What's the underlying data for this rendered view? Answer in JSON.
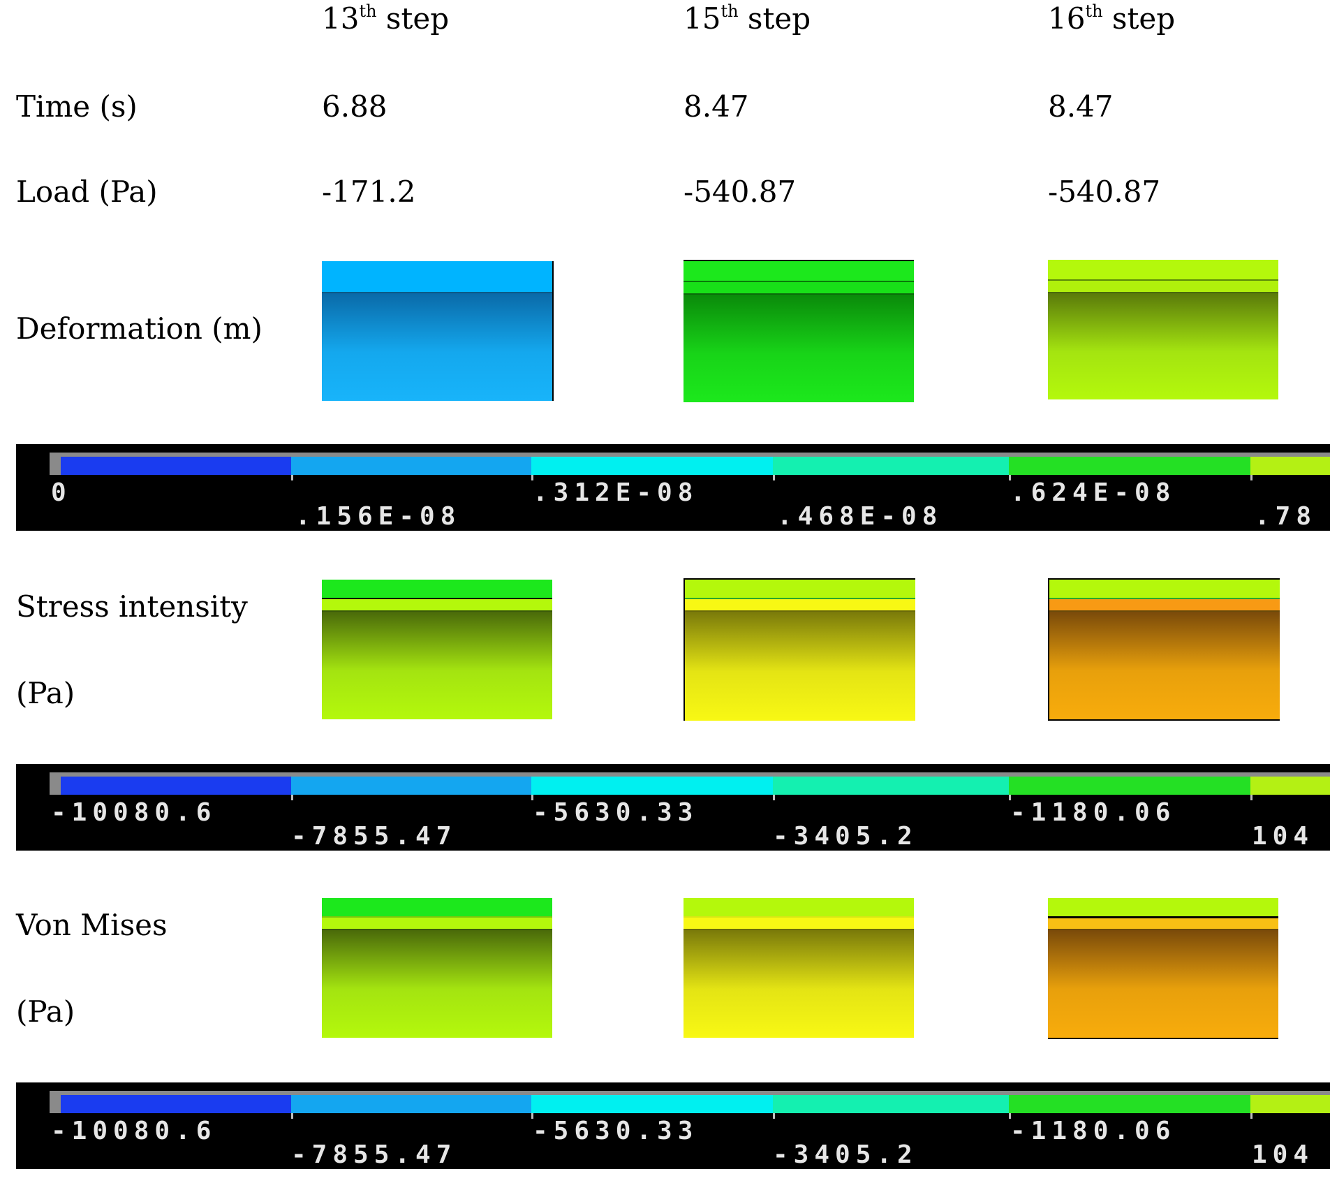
{
  "columns": [
    {
      "step_num": "13",
      "step_sup": "th",
      "step_word": " step",
      "time": "6.88",
      "load": "-171.2"
    },
    {
      "step_num": "15",
      "step_sup": "th",
      "step_word": " step",
      "time": "8.47",
      "load": "-540.87"
    },
    {
      "step_num": "16",
      "step_sup": "th",
      "step_word": " step",
      "time": "8.47",
      "load": "-540.87"
    }
  ],
  "rows": {
    "time": "Time (s)",
    "load": "Load (Pa)",
    "deformation": "Deformation (m)",
    "stress_line1": "Stress intensity",
    "stress_line2": "(Pa)",
    "vonmises_line1": "Von Mises",
    "vonmises_line2": "(Pa)"
  },
  "legends": {
    "deformation": {
      "top": [
        "0",
        ".312E-08",
        ".624E-08"
      ],
      "bottom": [
        ".156E-08",
        ".468E-08",
        ".78"
      ]
    },
    "stress_intensity": {
      "top": [
        "-10080.6",
        "-5630.33",
        "-1180.06"
      ],
      "bottom": [
        "-7855.47",
        "-3405.2",
        "104"
      ]
    },
    "von_mises": {
      "top": [
        "-10080.6",
        "-5630.33",
        "-1180.06"
      ],
      "bottom": [
        "-7855.47",
        "-3405.2",
        "104"
      ]
    }
  },
  "colors": {
    "legend_scale": [
      "#1a3cf0",
      "#14a6f0",
      "#00f0f0",
      "#14f0b0",
      "#24e024",
      "#b4f014"
    ],
    "deform_13": "#14b2f8",
    "deform_15": "#18e418",
    "deform_16": "#b4f014",
    "green": "#1ce81c",
    "yellow_green": "#b4f80c",
    "yellow": "#f8f814",
    "orange": "#f8ac0c"
  }
}
